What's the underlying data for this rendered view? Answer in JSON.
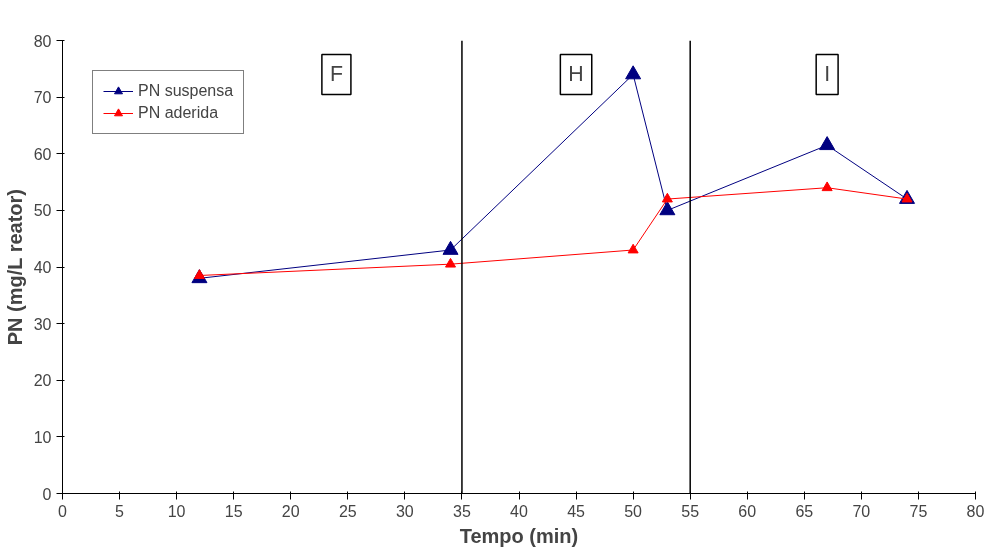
{
  "chart_data": {
    "type": "line",
    "xlabel": "Tempo (min)",
    "ylabel": "PN (mg/L reator)",
    "x": [
      12,
      34,
      50,
      53,
      67,
      74
    ],
    "series": [
      {
        "name": "PN suspensa",
        "color": "#000080",
        "values": [
          38,
          43,
          74,
          50,
          61.5,
          52
        ]
      },
      {
        "name": "PN aderida",
        "color": "#ff0000",
        "values": [
          38.5,
          40.5,
          43,
          52,
          54,
          52
        ]
      }
    ],
    "xlim": [
      0,
      80
    ],
    "xticks": [
      0,
      5,
      10,
      15,
      20,
      25,
      30,
      35,
      40,
      45,
      50,
      55,
      60,
      65,
      70,
      75,
      80
    ],
    "ylim": [
      0,
      80
    ],
    "yticks": [
      0,
      10,
      20,
      30,
      40,
      50,
      60,
      70,
      80
    ],
    "ref_lines": [
      {
        "axis": "x",
        "value": 35,
        "color": "#000000"
      },
      {
        "axis": "x",
        "value": 55,
        "color": "#000000"
      }
    ],
    "annotations": [
      {
        "text": "F",
        "x": 24,
        "y": 74
      },
      {
        "text": "H",
        "x": 45,
        "y": 74
      },
      {
        "text": "I",
        "x": 67,
        "y": 74
      }
    ],
    "grid": false,
    "legend": "top left",
    "marker": "triangle",
    "line_style": "solid"
  }
}
